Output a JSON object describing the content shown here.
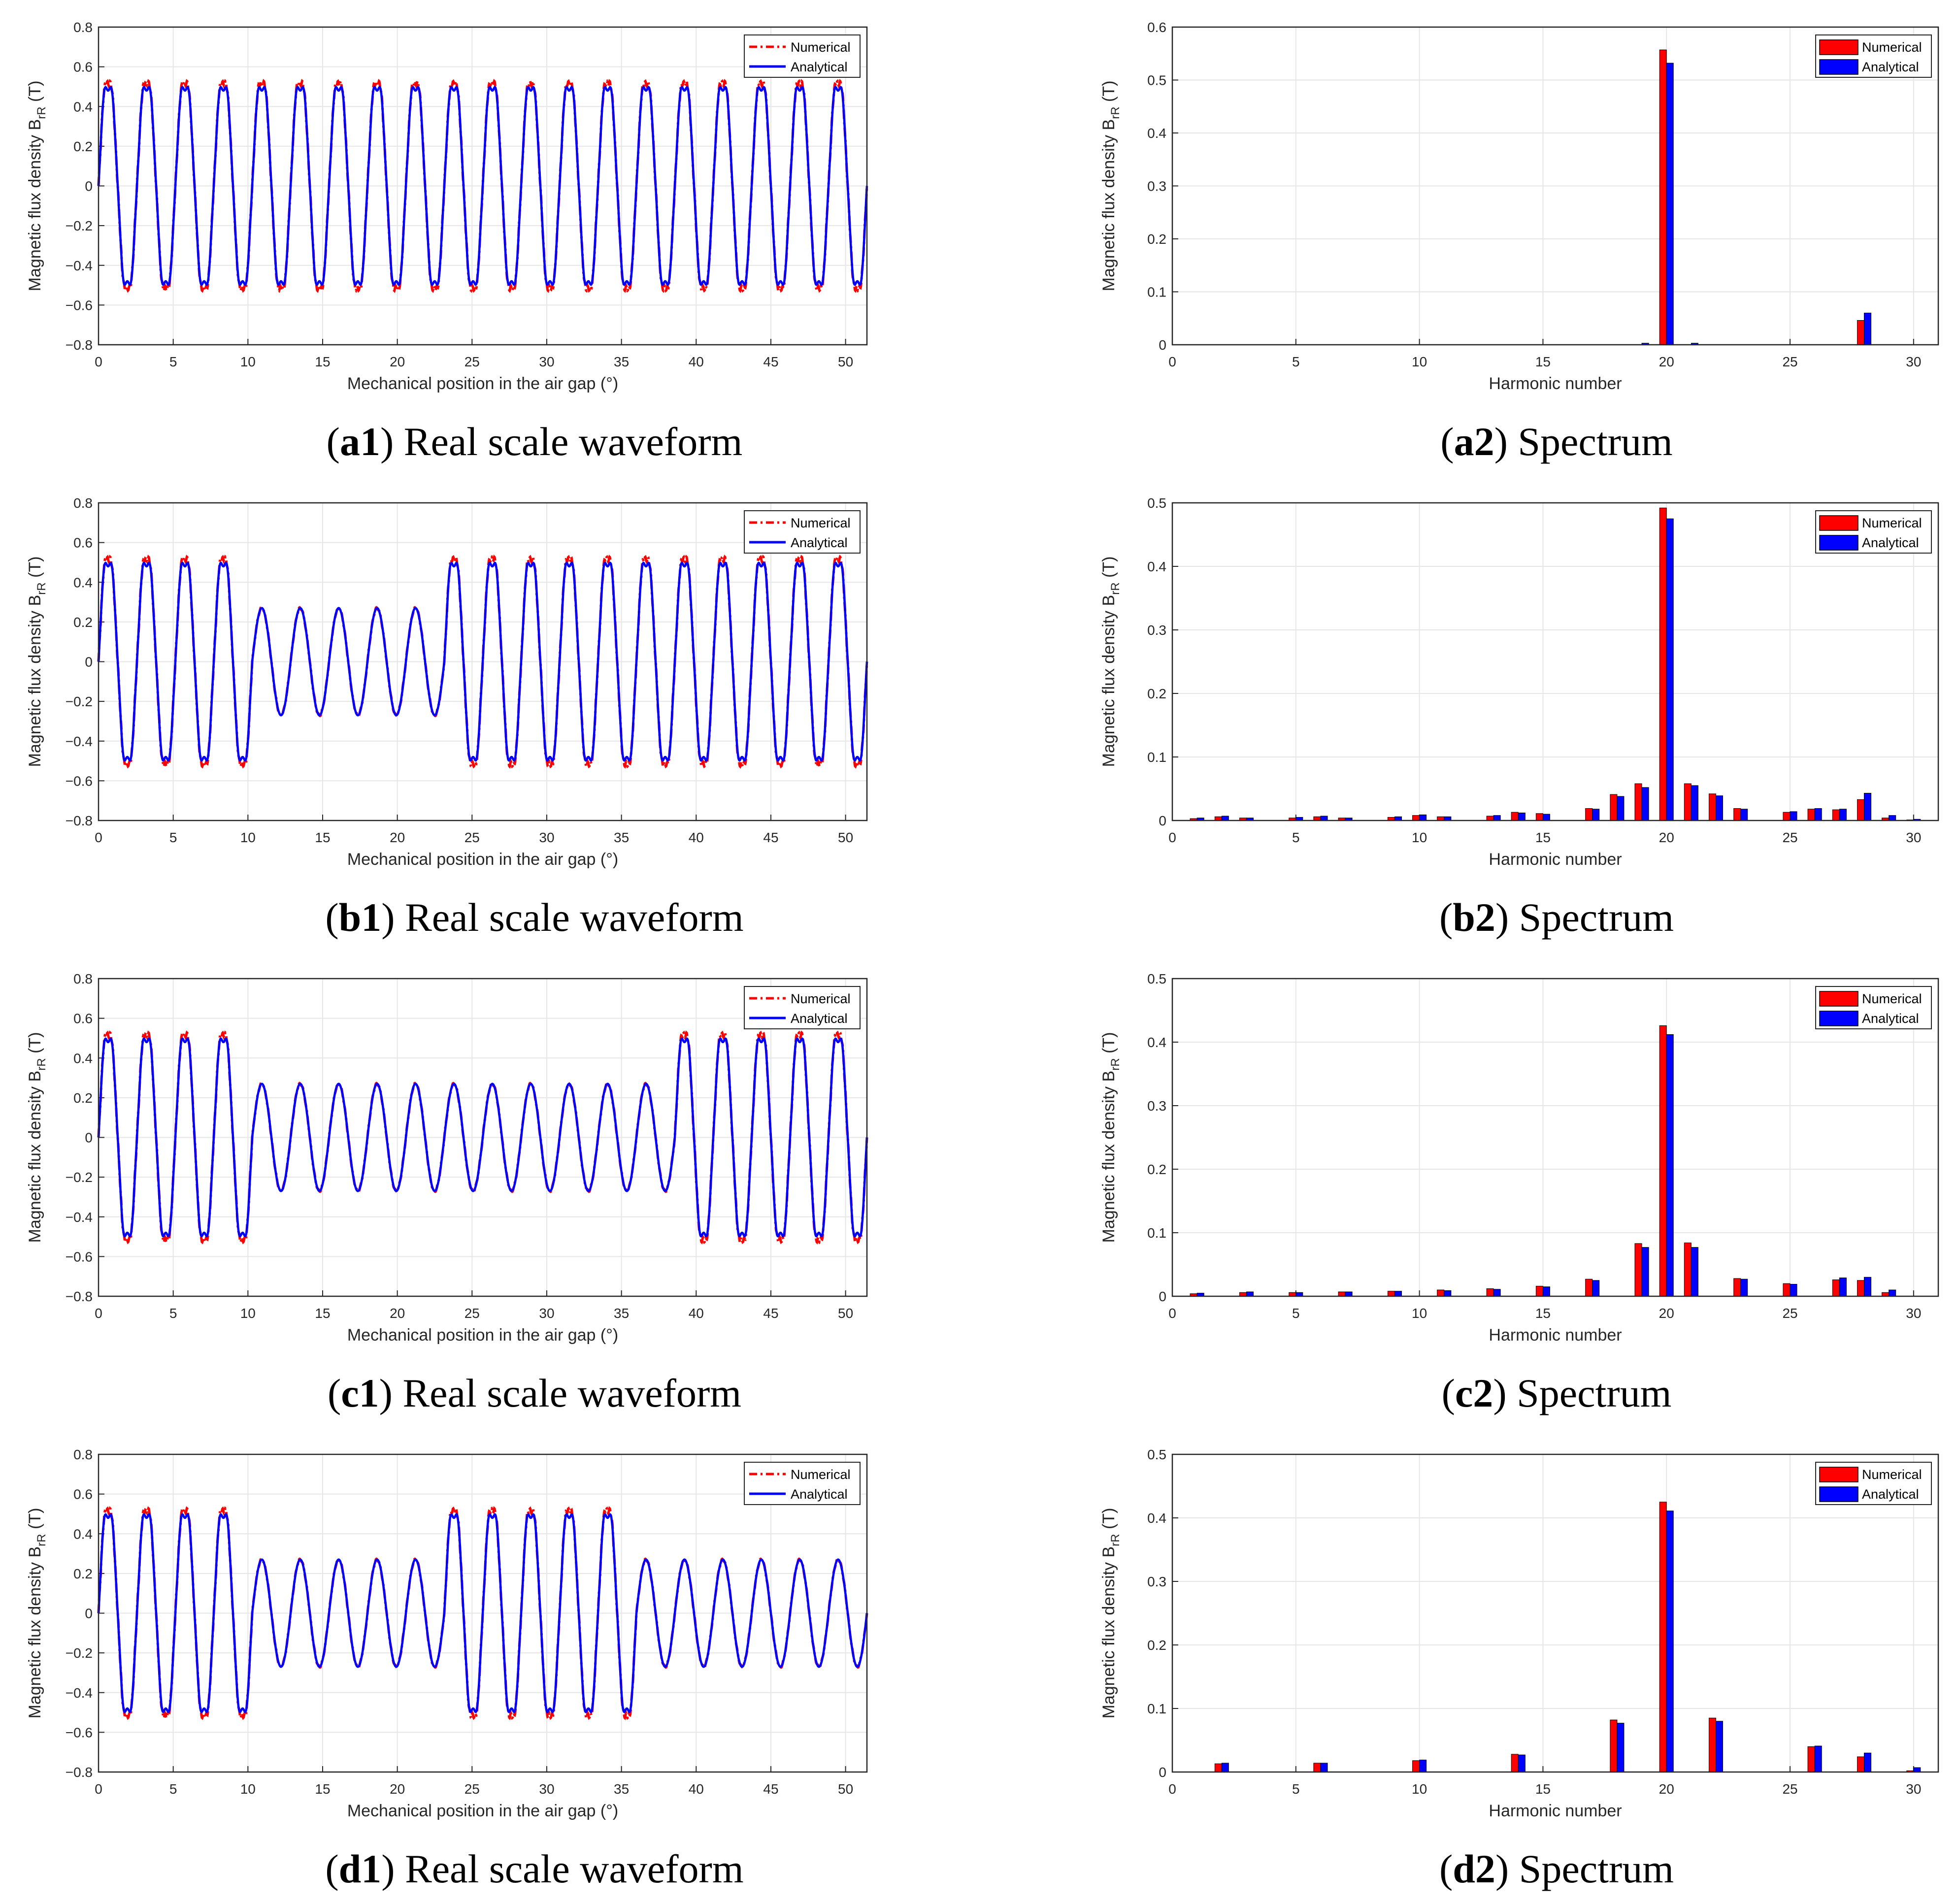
{
  "figure": {
    "legend": {
      "numerical": "Numerical",
      "analytical": "Analytical"
    },
    "colors": {
      "numerical": "#ff0000",
      "analytical": "#0000ff",
      "grid": "#e6e6e6",
      "axis": "#262626"
    }
  },
  "chart_data": [
    {
      "id": "a1",
      "type": "line",
      "caption_id": "a1",
      "caption_text": "Real scale waveform",
      "xlabel": "Mechanical position in the air gap (°)",
      "ylabel": "Magnetic flux density B",
      "ylabel_sub": "rR",
      "ylabel_unit": " (T)",
      "xlim": [
        0,
        51.43
      ],
      "ylim": [
        -0.8,
        0.8
      ],
      "xticks": [
        0,
        5,
        10,
        15,
        20,
        25,
        30,
        35,
        40,
        45,
        50
      ],
      "yticks": [
        -0.8,
        -0.6,
        -0.4,
        -0.2,
        0,
        0.2,
        0.4,
        0.6,
        0.8
      ],
      "ytick_labels": [
        "−0.8",
        "−0.6",
        "−0.4",
        "−0.2",
        "0",
        "0.2",
        "0.4",
        "0.6",
        "0.8"
      ],
      "periods": 20,
      "peak_full": 0.57,
      "peak_half": 0.27,
      "pattern": [
        "F",
        "F",
        "F",
        "F",
        "F",
        "F",
        "F",
        "F",
        "F",
        "F",
        "F",
        "F",
        "F",
        "F",
        "F",
        "F",
        "F",
        "F",
        "F",
        "F"
      ],
      "series": [
        {
          "name": "Numerical"
        },
        {
          "name": "Analytical"
        }
      ]
    },
    {
      "id": "a2",
      "type": "bar",
      "caption_id": "a2",
      "caption_text": "Spectrum",
      "xlabel": "Harmonic number",
      "ylabel": "Magnetic flux density B",
      "ylabel_sub": "rR",
      "ylabel_unit": " (T)",
      "xlim": [
        0,
        31
      ],
      "ylim": [
        0,
        0.6
      ],
      "xticks": [
        0,
        5,
        10,
        15,
        20,
        25,
        30
      ],
      "yticks": [
        0,
        0.1,
        0.2,
        0.3,
        0.4,
        0.5,
        0.6
      ],
      "ytick_labels": [
        "0",
        "0.1",
        "0.2",
        "0.3",
        "0.4",
        "0.5",
        "0.6"
      ],
      "categories": [
        1,
        2,
        3,
        4,
        5,
        6,
        7,
        8,
        9,
        10,
        11,
        12,
        13,
        14,
        15,
        16,
        17,
        18,
        19,
        20,
        21,
        22,
        23,
        24,
        25,
        26,
        27,
        28,
        29,
        30
      ],
      "series": [
        {
          "name": "Numerical",
          "values": [
            0,
            0,
            0,
            0,
            0,
            0,
            0,
            0,
            0,
            0,
            0,
            0,
            0,
            0,
            0,
            0,
            0,
            0,
            0,
            0.557,
            0,
            0,
            0,
            0,
            0,
            0,
            0,
            0.046,
            0,
            0
          ]
        },
        {
          "name": "Analytical",
          "values": [
            0,
            0,
            0,
            0,
            0,
            0,
            0,
            0,
            0,
            0,
            0,
            0,
            0,
            0,
            0,
            0,
            0,
            0,
            0.003,
            0.532,
            0.003,
            0,
            0,
            0,
            0,
            0,
            0,
            0.06,
            0,
            0
          ]
        }
      ]
    },
    {
      "id": "b1",
      "type": "line",
      "caption_id": "b1",
      "caption_text": "Real scale waveform",
      "xlabel": "Mechanical position in the air gap (°)",
      "ylabel": "Magnetic flux density B",
      "ylabel_sub": "rR",
      "ylabel_unit": " (T)",
      "xlim": [
        0,
        51.43
      ],
      "ylim": [
        -0.8,
        0.8
      ],
      "xticks": [
        0,
        5,
        10,
        15,
        20,
        25,
        30,
        35,
        40,
        45,
        50
      ],
      "yticks": [
        -0.8,
        -0.6,
        -0.4,
        -0.2,
        0,
        0.2,
        0.4,
        0.6,
        0.8
      ],
      "ytick_labels": [
        "−0.8",
        "−0.6",
        "−0.4",
        "−0.2",
        "0",
        "0.2",
        "0.4",
        "0.6",
        "0.8"
      ],
      "periods": 20,
      "peak_full": 0.57,
      "peak_half": 0.27,
      "pattern": [
        "F",
        "F",
        "F",
        "F",
        "H",
        "H",
        "H",
        "H",
        "H",
        "F",
        "F",
        "F",
        "F",
        "F",
        "F",
        "F",
        "F",
        "F",
        "F",
        "F"
      ],
      "series": [
        {
          "name": "Numerical"
        },
        {
          "name": "Analytical"
        }
      ]
    },
    {
      "id": "b2",
      "type": "bar",
      "caption_id": "b2",
      "caption_text": "Spectrum",
      "xlabel": "Harmonic number",
      "ylabel": "Magnetic flux density B",
      "ylabel_sub": "rR",
      "ylabel_unit": " (T)",
      "xlim": [
        0,
        31
      ],
      "ylim": [
        0,
        0.5
      ],
      "xticks": [
        0,
        5,
        10,
        15,
        20,
        25,
        30
      ],
      "yticks": [
        0,
        0.1,
        0.2,
        0.3,
        0.4,
        0.5
      ],
      "ytick_labels": [
        "0",
        "0.1",
        "0.2",
        "0.3",
        "0.4",
        "0.5"
      ],
      "categories": [
        1,
        2,
        3,
        4,
        5,
        6,
        7,
        8,
        9,
        10,
        11,
        12,
        13,
        14,
        15,
        16,
        17,
        18,
        19,
        20,
        21,
        22,
        23,
        24,
        25,
        26,
        27,
        28,
        29,
        30
      ],
      "series": [
        {
          "name": "Numerical",
          "values": [
            0.003,
            0.006,
            0.004,
            0,
            0.004,
            0.006,
            0.004,
            0,
            0.005,
            0.008,
            0.006,
            0,
            0.007,
            0.013,
            0.011,
            0,
            0.019,
            0.041,
            0.058,
            0.492,
            0.058,
            0.042,
            0.019,
            0,
            0.013,
            0.018,
            0.017,
            0.033,
            0.004,
            0.001
          ]
        },
        {
          "name": "Analytical",
          "values": [
            0.004,
            0.007,
            0.004,
            0,
            0.005,
            0.007,
            0.004,
            0,
            0.006,
            0.009,
            0.006,
            0,
            0.008,
            0.012,
            0.01,
            0,
            0.018,
            0.038,
            0.052,
            0.475,
            0.055,
            0.039,
            0.018,
            0,
            0.014,
            0.019,
            0.018,
            0.043,
            0.008,
            0.002
          ]
        }
      ]
    },
    {
      "id": "c1",
      "type": "line",
      "caption_id": "c1",
      "caption_text": "Real scale waveform",
      "xlabel": "Mechanical position in the air gap (°)",
      "ylabel": "Magnetic flux density B",
      "ylabel_sub": "rR",
      "ylabel_unit": " (T)",
      "xlim": [
        0,
        51.43
      ],
      "ylim": [
        -0.8,
        0.8
      ],
      "xticks": [
        0,
        5,
        10,
        15,
        20,
        25,
        30,
        35,
        40,
        45,
        50
      ],
      "yticks": [
        -0.8,
        -0.6,
        -0.4,
        -0.2,
        0,
        0.2,
        0.4,
        0.6,
        0.8
      ],
      "ytick_labels": [
        "−0.8",
        "−0.6",
        "−0.4",
        "−0.2",
        "0",
        "0.2",
        "0.4",
        "0.6",
        "0.8"
      ],
      "periods": 20,
      "peak_full": 0.57,
      "peak_half": 0.27,
      "pattern": [
        "F",
        "F",
        "F",
        "F",
        "H",
        "H",
        "H",
        "H",
        "H",
        "H",
        "H",
        "H",
        "H",
        "H",
        "H",
        "F",
        "F",
        "F",
        "F",
        "F"
      ],
      "series": [
        {
          "name": "Numerical"
        },
        {
          "name": "Analytical"
        }
      ]
    },
    {
      "id": "c2",
      "type": "bar",
      "caption_id": "c2",
      "caption_text": "Spectrum",
      "xlabel": "Harmonic number",
      "ylabel": "Magnetic flux density B",
      "ylabel_sub": "rR",
      "ylabel_unit": " (T)",
      "xlim": [
        0,
        31
      ],
      "ylim": [
        0,
        0.5
      ],
      "xticks": [
        0,
        5,
        10,
        15,
        20,
        25,
        30
      ],
      "yticks": [
        0,
        0.1,
        0.2,
        0.3,
        0.4,
        0.5
      ],
      "ytick_labels": [
        "0",
        "0.1",
        "0.2",
        "0.3",
        "0.4",
        "0.5"
      ],
      "categories": [
        1,
        2,
        3,
        4,
        5,
        6,
        7,
        8,
        9,
        10,
        11,
        12,
        13,
        14,
        15,
        16,
        17,
        18,
        19,
        20,
        21,
        22,
        23,
        24,
        25,
        26,
        27,
        28,
        29,
        30
      ],
      "series": [
        {
          "name": "Numerical",
          "values": [
            0.004,
            0,
            0.006,
            0,
            0.006,
            0,
            0.007,
            0,
            0.008,
            0,
            0.01,
            0,
            0.012,
            0,
            0.016,
            0,
            0.027,
            0,
            0.083,
            0.426,
            0.084,
            0,
            0.028,
            0,
            0.02,
            0,
            0.026,
            0.025,
            0.006,
            0
          ]
        },
        {
          "name": "Analytical",
          "values": [
            0.005,
            0,
            0.007,
            0,
            0.006,
            0,
            0.007,
            0,
            0.008,
            0,
            0.009,
            0,
            0.011,
            0,
            0.015,
            0,
            0.025,
            0,
            0.077,
            0.412,
            0.077,
            0,
            0.027,
            0,
            0.019,
            0,
            0.029,
            0.03,
            0.01,
            0
          ]
        }
      ]
    },
    {
      "id": "d1",
      "type": "line",
      "caption_id": "d1",
      "caption_text": "Real scale waveform",
      "xlabel": "Mechanical position in the air gap (°)",
      "ylabel": "Magnetic flux density B",
      "ylabel_sub": "rR",
      "ylabel_unit": " (T)",
      "xlim": [
        0,
        51.43
      ],
      "ylim": [
        -0.8,
        0.8
      ],
      "xticks": [
        0,
        5,
        10,
        15,
        20,
        25,
        30,
        35,
        40,
        45,
        50
      ],
      "yticks": [
        -0.8,
        -0.6,
        -0.4,
        -0.2,
        0,
        0.2,
        0.4,
        0.6,
        0.8
      ],
      "ytick_labels": [
        "−0.8",
        "−0.6",
        "−0.4",
        "−0.2",
        "0",
        "0.2",
        "0.4",
        "0.6",
        "0.8"
      ],
      "periods": 20,
      "peak_full": 0.57,
      "peak_half": 0.27,
      "pattern": [
        "F",
        "F",
        "F",
        "F",
        "H",
        "H",
        "H",
        "H",
        "H",
        "F",
        "F",
        "F",
        "F",
        "F",
        "H",
        "H",
        "H",
        "H",
        "H",
        "H"
      ],
      "series": [
        {
          "name": "Numerical"
        },
        {
          "name": "Analytical"
        }
      ]
    },
    {
      "id": "d2",
      "type": "bar",
      "caption_id": "d2",
      "caption_text": "Spectrum",
      "xlabel": "Harmonic number",
      "ylabel": "Magnetic flux density B",
      "ylabel_sub": "rR",
      "ylabel_unit": " (T)",
      "xlim": [
        0,
        31
      ],
      "ylim": [
        0,
        0.5
      ],
      "xticks": [
        0,
        5,
        10,
        15,
        20,
        25,
        30
      ],
      "yticks": [
        0,
        0.1,
        0.2,
        0.3,
        0.4,
        0.5
      ],
      "ytick_labels": [
        "0",
        "0.1",
        "0.2",
        "0.3",
        "0.4",
        "0.5"
      ],
      "categories": [
        1,
        2,
        3,
        4,
        5,
        6,
        7,
        8,
        9,
        10,
        11,
        12,
        13,
        14,
        15,
        16,
        17,
        18,
        19,
        20,
        21,
        22,
        23,
        24,
        25,
        26,
        27,
        28,
        29,
        30
      ],
      "series": [
        {
          "name": "Numerical",
          "values": [
            0,
            0.013,
            0,
            0,
            0,
            0.014,
            0,
            0,
            0,
            0.018,
            0,
            0,
            0,
            0.028,
            0,
            0,
            0,
            0.082,
            0,
            0.425,
            0,
            0.085,
            0,
            0,
            0,
            0.04,
            0,
            0.024,
            0,
            0.002
          ]
        },
        {
          "name": "Analytical",
          "values": [
            0,
            0.014,
            0,
            0,
            0,
            0.014,
            0,
            0,
            0,
            0.019,
            0,
            0,
            0,
            0.027,
            0,
            0,
            0,
            0.077,
            0,
            0.411,
            0,
            0.08,
            0,
            0,
            0,
            0.041,
            0,
            0.03,
            0,
            0.007
          ]
        }
      ]
    }
  ]
}
